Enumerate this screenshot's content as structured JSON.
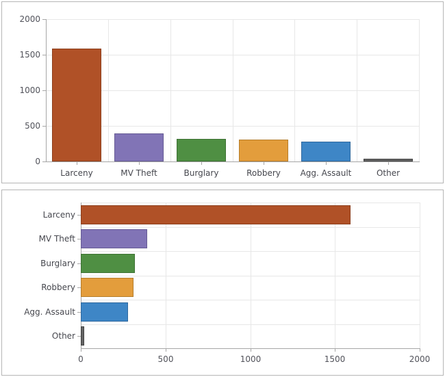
{
  "chart_data": [
    {
      "type": "bar",
      "orientation": "vertical",
      "title": "",
      "xlabel": "",
      "ylabel": "",
      "categories": [
        "Larceny",
        "MV Theft",
        "Burglary",
        "Robbery",
        "Agg. Assault",
        "Other"
      ],
      "values": [
        1590,
        390,
        320,
        310,
        280,
        20
      ],
      "value_ticks": [
        "0",
        "500",
        "1000",
        "1500",
        "2000"
      ],
      "value_tick_numbers": [
        0,
        500,
        1000,
        1500,
        2000
      ],
      "value_range": [
        0,
        2000
      ],
      "grid": true,
      "legend": "none",
      "bar_fill_colors": [
        "#b05127",
        "#8174b6",
        "#4f8f43",
        "#e39d3c",
        "#3e86c6",
        "#646464"
      ],
      "bar_border_colors": [
        "#8c3f1d",
        "#665b94",
        "#3d7133",
        "#b57d2b",
        "#2f689e",
        "#424242"
      ]
    },
    {
      "type": "bar",
      "orientation": "horizontal",
      "title": "",
      "xlabel": "",
      "ylabel": "",
      "categories": [
        "Larceny",
        "MV Theft",
        "Burglary",
        "Robbery",
        "Agg. Assault",
        "Other"
      ],
      "values": [
        1590,
        390,
        320,
        310,
        280,
        20
      ],
      "value_ticks": [
        "0",
        "500",
        "1000",
        "1500",
        "2000"
      ],
      "value_tick_numbers": [
        0,
        500,
        1000,
        1500,
        2000
      ],
      "value_range": [
        0,
        2000
      ],
      "grid": true,
      "legend": "none",
      "bar_fill_colors": [
        "#b05127",
        "#8174b6",
        "#4f8f43",
        "#e39d3c",
        "#3e86c6",
        "#646464"
      ],
      "bar_border_colors": [
        "#8c3f1d",
        "#665b94",
        "#3d7133",
        "#b57d2b",
        "#2f689e",
        "#424242"
      ]
    }
  ],
  "style": {
    "panel_border_color": "#b5b5b5",
    "grid_color": "#e7e7e7",
    "axis_color": "#a6a6a6",
    "label_color": "#51525a",
    "category_label_color": "#46474e",
    "background": "#ffffff"
  }
}
